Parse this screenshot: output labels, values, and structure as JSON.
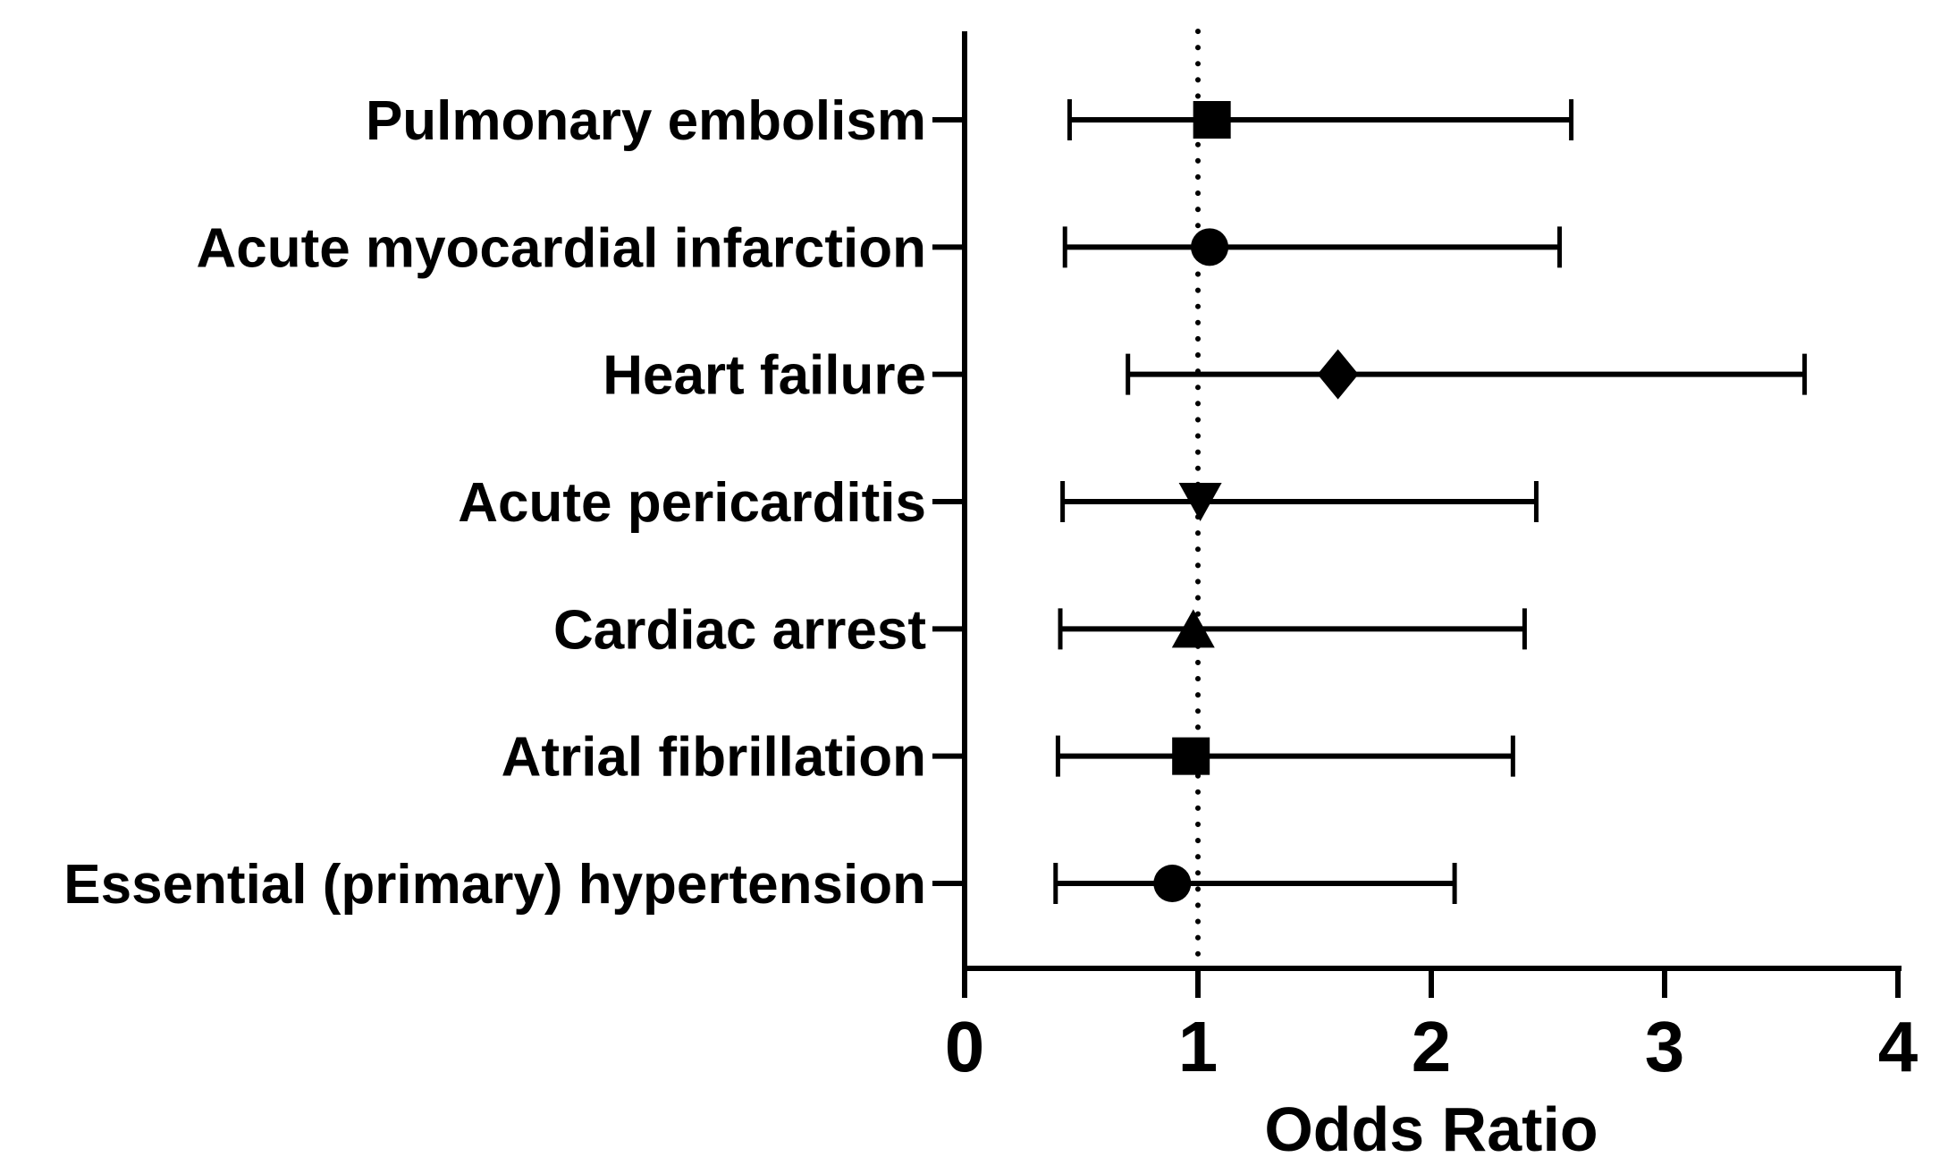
{
  "figure": {
    "background": "#ffffff",
    "ink": "#000000"
  },
  "chart_data": {
    "type": "scatter",
    "subtype": "forest-plot",
    "title": "",
    "xlabel": "Odds Ratio",
    "ylabel": "",
    "xlim": [
      0,
      4
    ],
    "xticks": [
      0,
      1,
      2,
      3,
      4
    ],
    "grid": false,
    "legend_position": "none",
    "reference_line": {
      "x": 1,
      "style": "dotted"
    },
    "rows": [
      {
        "label": "Pulmonary embolism",
        "marker": "square",
        "or": 1.06,
        "ci_low": 0.45,
        "ci_high": 2.6
      },
      {
        "label": "Acute myocardial infarction",
        "marker": "circle",
        "or": 1.05,
        "ci_low": 0.43,
        "ci_high": 2.55
      },
      {
        "label": "Heart failure",
        "marker": "diamond",
        "or": 1.6,
        "ci_low": 0.7,
        "ci_high": 3.6
      },
      {
        "label": "Acute pericarditis",
        "marker": "triangle-down",
        "or": 1.01,
        "ci_low": 0.42,
        "ci_high": 2.45
      },
      {
        "label": "Cardiac arrest",
        "marker": "triangle-up",
        "or": 0.98,
        "ci_low": 0.41,
        "ci_high": 2.4
      },
      {
        "label": "Atrial fibrillation",
        "marker": "square",
        "or": 0.97,
        "ci_low": 0.4,
        "ci_high": 2.35
      },
      {
        "label": "Essential (primary) hypertension",
        "marker": "circle",
        "or": 0.89,
        "ci_low": 0.39,
        "ci_high": 2.1
      }
    ]
  }
}
